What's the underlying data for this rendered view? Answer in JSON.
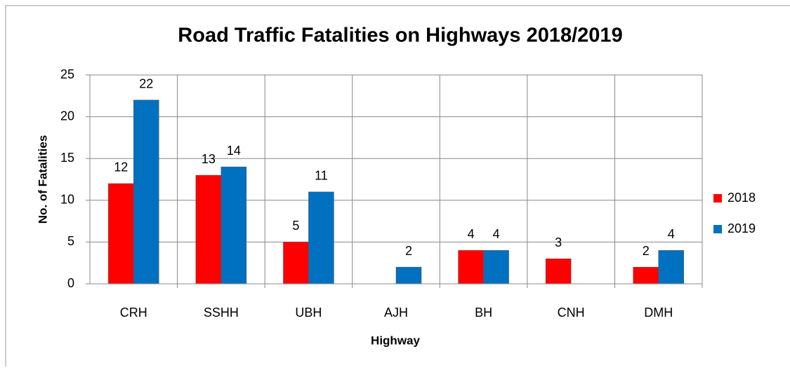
{
  "chart_data": {
    "type": "bar",
    "title": "Road Traffic Fatalities on Highways 2018/2019",
    "x_label": "Highway",
    "y_label": "No. of Fatalities",
    "categories": [
      "CRH",
      "SSHH",
      "UBH",
      "AJH",
      "BH",
      "CNH",
      "DMH"
    ],
    "series": [
      {
        "name": "2018",
        "color": "#ff0000",
        "values": [
          12,
          13,
          5,
          null,
          4,
          3,
          2
        ]
      },
      {
        "name": "2019",
        "color": "#0070c0",
        "values": [
          22,
          14,
          11,
          2,
          4,
          null,
          4
        ]
      }
    ],
    "ylim": [
      0,
      25
    ],
    "yticks": [
      0,
      5,
      10,
      15,
      20,
      25
    ],
    "grid": true,
    "legend": "right"
  }
}
